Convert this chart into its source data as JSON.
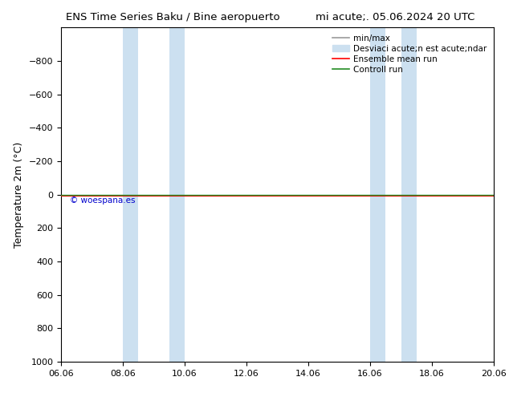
{
  "title_left": "ENS Time Series Baku / Bine aeropuerto",
  "title_right": "mi acute;. 05.06.2024 20 UTC",
  "ylabel": "Temperature 2m (°C)",
  "ylim_bottom": 1000,
  "ylim_top": -1000,
  "yticks": [
    -800,
    -600,
    -400,
    -200,
    0,
    200,
    400,
    600,
    800,
    1000
  ],
  "xticks": [
    "06.06",
    "08.06",
    "10.06",
    "12.06",
    "14.06",
    "16.06",
    "18.06",
    "20.06"
  ],
  "xtick_positions": [
    0,
    2,
    4,
    6,
    8,
    10,
    12,
    14
  ],
  "band1_x0": 2.0,
  "band1_x1": 2.5,
  "band2_x0": 3.5,
  "band2_x1": 4.0,
  "band3_x0": 10.0,
  "band3_x1": 10.5,
  "band4_x0": 11.0,
  "band4_x1": 11.5,
  "horizontal_line_y": 0,
  "line_color_ensemble": "#ff0000",
  "line_color_control": "#228b22",
  "legend_labels": [
    "min/max",
    "Desviaci acute;n est acute;ndar",
    "Ensemble mean run",
    "Controll run"
  ],
  "watermark": "© woespana.es",
  "watermark_color": "#0000cc",
  "background_color": "#ffffff",
  "band_color": "#cce0f0",
  "minmax_color": "#999999",
  "title_fontsize": 9.5,
  "legend_fontsize": 7.5,
  "tick_fontsize": 8,
  "ylabel_fontsize": 9
}
